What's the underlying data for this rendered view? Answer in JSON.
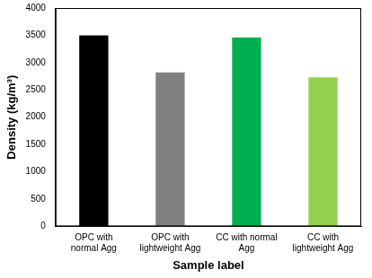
{
  "chart_data": {
    "type": "bar",
    "x_label": "Sample label",
    "y_label": "Density (kg/m³)",
    "categories": [
      "OPC with\nnormal Agg",
      "OPC with\nlightweight Agg",
      "CC with normal\nAgg",
      "CC with\nlightweight Agg"
    ],
    "values": [
      3500,
      2820,
      3460,
      2730
    ],
    "colors": [
      "#000000",
      "#808080",
      "#00b050",
      "#92d050"
    ],
    "ylim": [
      0,
      4000
    ],
    "yticks": [
      0,
      500,
      1000,
      1500,
      2000,
      2500,
      3000,
      3500,
      4000
    ],
    "grid": false
  }
}
